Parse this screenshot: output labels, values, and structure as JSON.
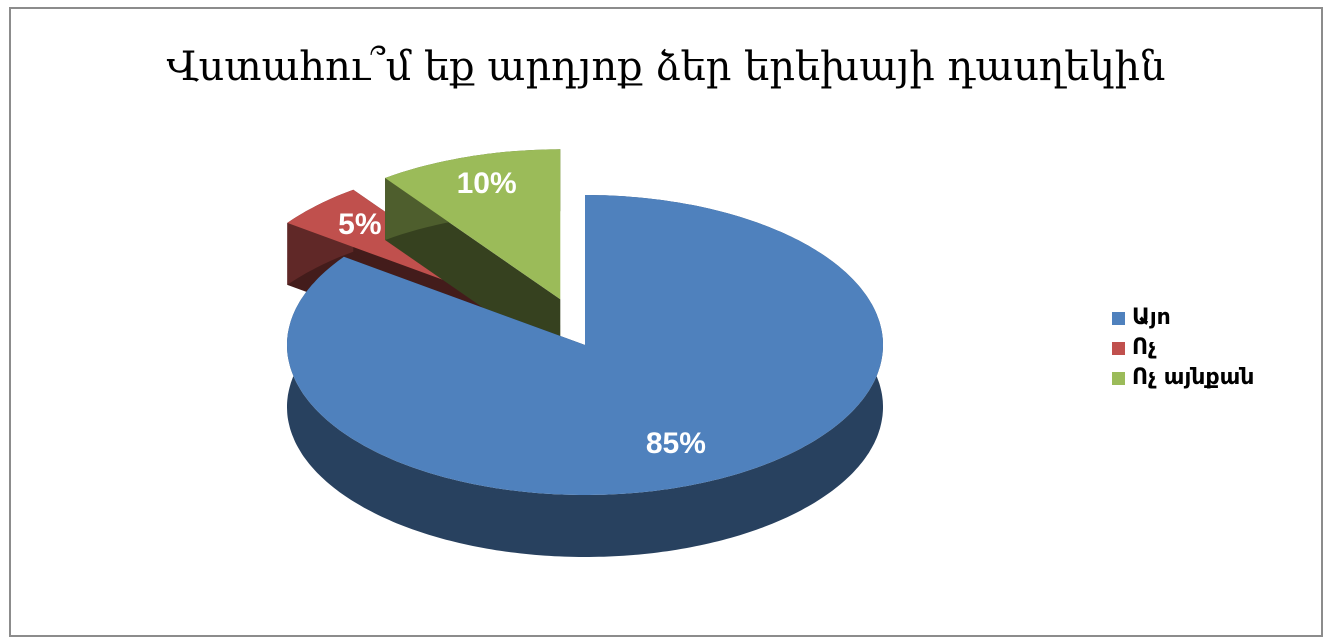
{
  "chart_data": {
    "type": "pie",
    "title": "Վստահու՞մ եք արդյոք ձեր երեխայի դասղեկին",
    "categories": [
      "Այո",
      "Ոչ",
      "Ոչ այնքան"
    ],
    "values": [
      85,
      5,
      10
    ],
    "value_labels": [
      "85%",
      "5%",
      "10%"
    ],
    "colors": [
      "#4f81bd",
      "#c0504d",
      "#9bbb59"
    ],
    "legend": "right"
  }
}
